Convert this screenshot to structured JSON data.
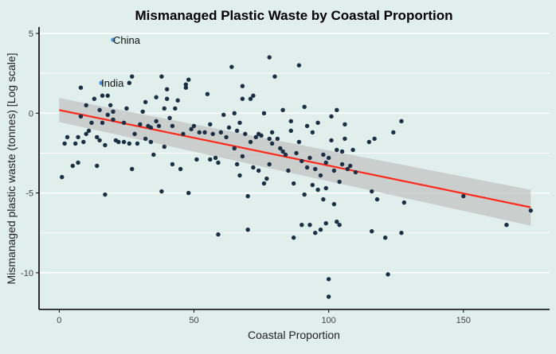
{
  "chart_data": {
    "type": "scatter",
    "title": "Mismanaged Plastic Waste by Coastal Proportion",
    "xlabel": "Coastal Proportion",
    "ylabel": "Mismanaged plastic waste (tonnes) [Log scale]",
    "xlim": [
      -7.5,
      182
    ],
    "ylim": [
      -12.3,
      5.4
    ],
    "x_ticks": [
      0,
      50,
      100,
      150
    ],
    "y_ticks": [
      5,
      0,
      -5,
      -10
    ],
    "x_tick_labels": [
      "0",
      "50",
      "100",
      "150"
    ],
    "y_tick_labels": [
      "5",
      "0",
      "-5",
      "-10"
    ],
    "grid": "horizontal",
    "legend": "none",
    "colors": {
      "background": "#e0eeec",
      "point": "#1b2f45",
      "highlight": "#4a90d9",
      "trend": "#ff2a1a",
      "band": "#c6c9c9",
      "gridline": "#ffffff",
      "axis": "#000000"
    },
    "highlighted": [
      {
        "label": "China",
        "x": 20,
        "y": 4.6
      },
      {
        "label": "India",
        "x": 15.6,
        "y": 1.9
      }
    ],
    "trend": {
      "x": [
        0,
        175
      ],
      "y": [
        0.2,
        -5.9
      ],
      "lower": [
        -0.55,
        -7.05
      ],
      "upper": [
        0.95,
        -4.8
      ]
    },
    "points": [
      [
        1,
        -4
      ],
      [
        2,
        -1.9
      ],
      [
        3,
        -1.5
      ],
      [
        5,
        -3.3
      ],
      [
        6,
        -1.9
      ],
      [
        7,
        -3.1
      ],
      [
        7,
        -1.5
      ],
      [
        8,
        -0.2
      ],
      [
        8,
        1.6
      ],
      [
        9,
        -1.8
      ],
      [
        10,
        -1.3
      ],
      [
        10,
        0.5
      ],
      [
        11,
        -1.1
      ],
      [
        12,
        -0.6
      ],
      [
        13,
        0.9
      ],
      [
        14,
        -1.5
      ],
      [
        14,
        -3.3
      ],
      [
        15,
        -1.7
      ],
      [
        15,
        0.2
      ],
      [
        16,
        -0.6
      ],
      [
        16,
        1.1
      ],
      [
        17,
        -2
      ],
      [
        17,
        -5.1
      ],
      [
        18,
        -0.1
      ],
      [
        18,
        1.1
      ],
      [
        19,
        0.5
      ],
      [
        20,
        -0.4
      ],
      [
        20,
        0.1
      ],
      [
        21,
        -1.7
      ],
      [
        22,
        -1.8
      ],
      [
        24,
        -1.8
      ],
      [
        24,
        -0.6
      ],
      [
        25,
        0.3
      ],
      [
        26,
        1.9
      ],
      [
        26,
        -1.9
      ],
      [
        27,
        2.3
      ],
      [
        27,
        -3.5
      ],
      [
        28,
        -1.3
      ],
      [
        29,
        -1.9
      ],
      [
        30,
        -0.7
      ],
      [
        31,
        0.1
      ],
      [
        32,
        0.7
      ],
      [
        32,
        -1.6
      ],
      [
        33,
        -0.8
      ],
      [
        34,
        -0.9
      ],
      [
        34,
        -1.8
      ],
      [
        35,
        -2.6
      ],
      [
        36,
        -0.5
      ],
      [
        36,
        1
      ],
      [
        37,
        -0.8
      ],
      [
        38,
        2.3
      ],
      [
        38,
        -4.9
      ],
      [
        39,
        0.3
      ],
      [
        39,
        -2.1
      ],
      [
        40,
        1.5
      ],
      [
        40,
        0.9
      ],
      [
        41,
        -0.3
      ],
      [
        42,
        -0.8
      ],
      [
        42,
        -3.2
      ],
      [
        43,
        0.3
      ],
      [
        44,
        0.8
      ],
      [
        45,
        -3.5
      ],
      [
        46,
        -1.3
      ],
      [
        47,
        1.6
      ],
      [
        47,
        1.8
      ],
      [
        48,
        2.1
      ],
      [
        48,
        -5
      ],
      [
        49,
        -1
      ],
      [
        50,
        -0.8
      ],
      [
        51,
        -2.9
      ],
      [
        52,
        -1.2
      ],
      [
        54,
        -1.2
      ],
      [
        55,
        1.2
      ],
      [
        56,
        -2.9
      ],
      [
        56,
        -0.7
      ],
      [
        57,
        -1.3
      ],
      [
        58,
        -2.8
      ],
      [
        59,
        -3.1
      ],
      [
        59,
        -7.6
      ],
      [
        60,
        -1.2
      ],
      [
        61,
        -0.1
      ],
      [
        62,
        -1.5
      ],
      [
        63,
        -0.9
      ],
      [
        64,
        2.9
      ],
      [
        65,
        -2.2
      ],
      [
        65,
        0
      ],
      [
        66,
        -1.1
      ],
      [
        66,
        -3.2
      ],
      [
        67,
        -3.9
      ],
      [
        67,
        -0.6
      ],
      [
        68,
        1.7
      ],
      [
        68,
        0.9
      ],
      [
        68,
        -2.7
      ],
      [
        69,
        -1.3
      ],
      [
        70,
        -7.3
      ],
      [
        70,
        -5.2
      ],
      [
        71,
        0.9
      ],
      [
        71,
        -1.8
      ],
      [
        72,
        -3.4
      ],
      [
        72,
        1.1
      ],
      [
        73,
        -1.5
      ],
      [
        74,
        -3.6
      ],
      [
        74,
        -1.3
      ],
      [
        75,
        -1.4
      ],
      [
        76,
        -4.4
      ],
      [
        76,
        0
      ],
      [
        77,
        -4.1
      ],
      [
        78,
        -1.6
      ],
      [
        78,
        -3.2
      ],
      [
        78,
        3.5
      ],
      [
        79,
        -1.2
      ],
      [
        79,
        -1.9
      ],
      [
        80,
        2.3
      ],
      [
        81,
        -1.6
      ],
      [
        82,
        -2.2
      ],
      [
        83,
        0.2
      ],
      [
        83,
        -2.4
      ],
      [
        84,
        -2.6
      ],
      [
        85,
        -3.6
      ],
      [
        86,
        -0.5
      ],
      [
        86,
        -1.1
      ],
      [
        87,
        -4.4
      ],
      [
        87,
        -7.8
      ],
      [
        88,
        -2.5
      ],
      [
        89,
        -1.8
      ],
      [
        89,
        3
      ],
      [
        90,
        -3
      ],
      [
        90,
        -7
      ],
      [
        91,
        0.4
      ],
      [
        91,
        -5.1
      ],
      [
        92,
        -0.8
      ],
      [
        92,
        -3.4
      ],
      [
        93,
        -2.8
      ],
      [
        93,
        -7
      ],
      [
        94,
        -4.5
      ],
      [
        94,
        -1.2
      ],
      [
        95,
        -3.5
      ],
      [
        95,
        -7.5
      ],
      [
        96,
        -0.6
      ],
      [
        96,
        -4.8
      ],
      [
        97,
        -3.9
      ],
      [
        97,
        -7.3
      ],
      [
        98,
        -2.6
      ],
      [
        98,
        -5.4
      ],
      [
        99,
        -3.1
      ],
      [
        99,
        -4.7
      ],
      [
        99,
        -6.9
      ],
      [
        100,
        -10.4
      ],
      [
        100,
        -11.5
      ],
      [
        100,
        -2.8
      ],
      [
        101,
        -0.2
      ],
      [
        101,
        -1.7
      ],
      [
        102,
        -3.6
      ],
      [
        102,
        -5.7
      ],
      [
        103,
        -2.3
      ],
      [
        103,
        -6.8
      ],
      [
        103,
        0.2
      ],
      [
        104,
        -4.3
      ],
      [
        104,
        -7
      ],
      [
        105,
        -3.2
      ],
      [
        105,
        -2.4
      ],
      [
        106,
        -0.7
      ],
      [
        106,
        -1.6
      ],
      [
        107,
        -3.5
      ],
      [
        108,
        -3.3
      ],
      [
        109,
        -2.3
      ],
      [
        110,
        -3.7
      ],
      [
        115,
        -1.8
      ],
      [
        116,
        -4.9
      ],
      [
        116,
        -7.4
      ],
      [
        117,
        -1.6
      ],
      [
        118,
        -5.4
      ],
      [
        121,
        -7.8
      ],
      [
        122,
        -10.1
      ],
      [
        124,
        -1.2
      ],
      [
        127,
        -0.5
      ],
      [
        127,
        -7.5
      ],
      [
        128,
        -5.6
      ],
      [
        150,
        -5.2
      ],
      [
        166,
        -7
      ],
      [
        175,
        -6.1
      ]
    ]
  }
}
